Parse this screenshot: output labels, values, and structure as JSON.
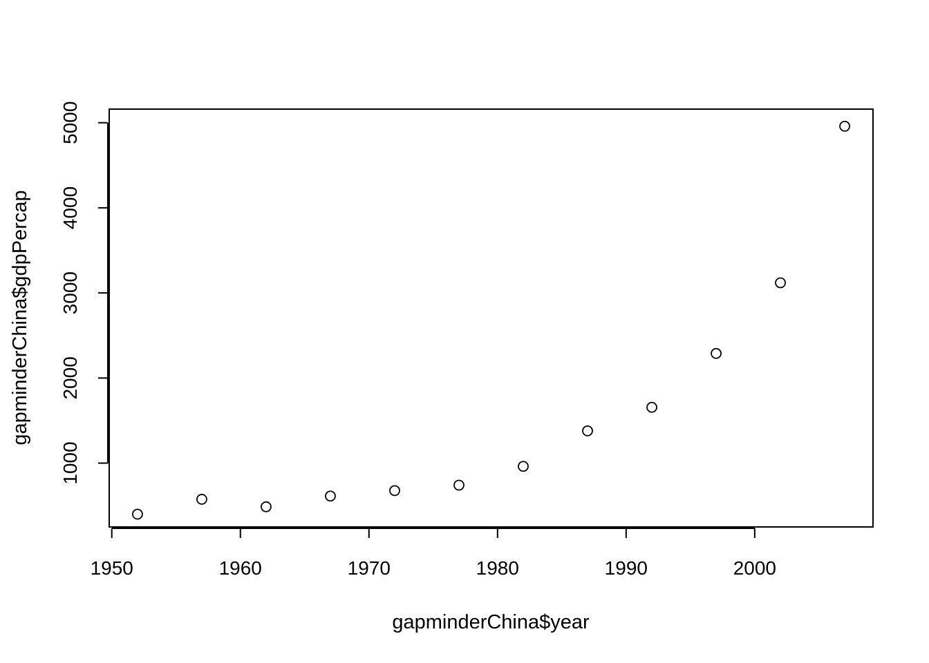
{
  "chart_data": {
    "type": "scatter",
    "title": "",
    "xlabel": "gapminderChina$year",
    "ylabel": "gapminderChina$gdpPercap",
    "xlim": [
      1949.8,
      2009.2
    ],
    "ylim": [
      250,
      5160
    ],
    "x_ticks": [
      1950,
      1960,
      1970,
      1980,
      1990,
      2000
    ],
    "x_tick_labels": [
      "1950",
      "1960",
      "1970",
      "1980",
      "1990",
      "2000"
    ],
    "y_ticks": [
      1000,
      2000,
      3000,
      4000,
      5000
    ],
    "y_tick_labels": [
      "1000",
      "2000",
      "3000",
      "4000",
      "5000"
    ],
    "grid": false,
    "legend": "none",
    "marker": "open-circle",
    "x": [
      1952,
      1957,
      1962,
      1967,
      1972,
      1977,
      1982,
      1987,
      1992,
      1997,
      2002,
      2007
    ],
    "y": [
      400,
      575,
      487,
      613,
      677,
      741,
      962,
      1379,
      1656,
      2289,
      3119,
      4959
    ]
  }
}
